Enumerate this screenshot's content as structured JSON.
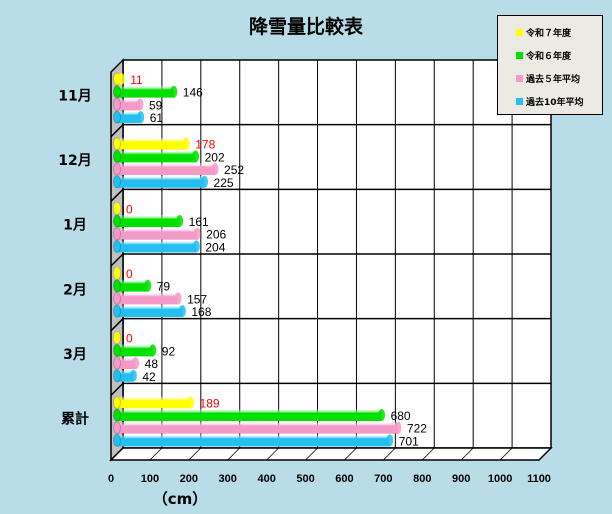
{
  "chart_data": {
    "type": "bar",
    "orientation": "horizontal",
    "title": "降雪量比較表",
    "categories": [
      "11月",
      "12月",
      "1月",
      "2月",
      "3月",
      "累計"
    ],
    "series": [
      {
        "name": "令和７年度",
        "color": "#ffff00",
        "label_color": "#ff0000",
        "values": [
          11,
          178,
          0,
          0,
          0,
          189
        ]
      },
      {
        "name": "令和６年度",
        "color": "#00e000",
        "label_color": "#000000",
        "values": [
          146,
          202,
          161,
          79,
          92,
          680
        ]
      },
      {
        "name": "過去５年平均",
        "color": "#f49ac8",
        "label_color": "#000000",
        "values": [
          59,
          252,
          206,
          157,
          48,
          722
        ]
      },
      {
        "name": "過去10年平均",
        "color": "#22bff0",
        "label_color": "#000000",
        "values": [
          61,
          225,
          204,
          168,
          42,
          701
        ]
      }
    ],
    "xlabel": "（cm）",
    "xlim": [
      0,
      1100
    ],
    "xticks": [
      "0",
      "100",
      "200",
      "300",
      "400",
      "500",
      "600",
      "700",
      "800",
      "900",
      "1000",
      "1100"
    ],
    "grid": true,
    "legend": "top-right",
    "style": "3d-cylinder"
  }
}
